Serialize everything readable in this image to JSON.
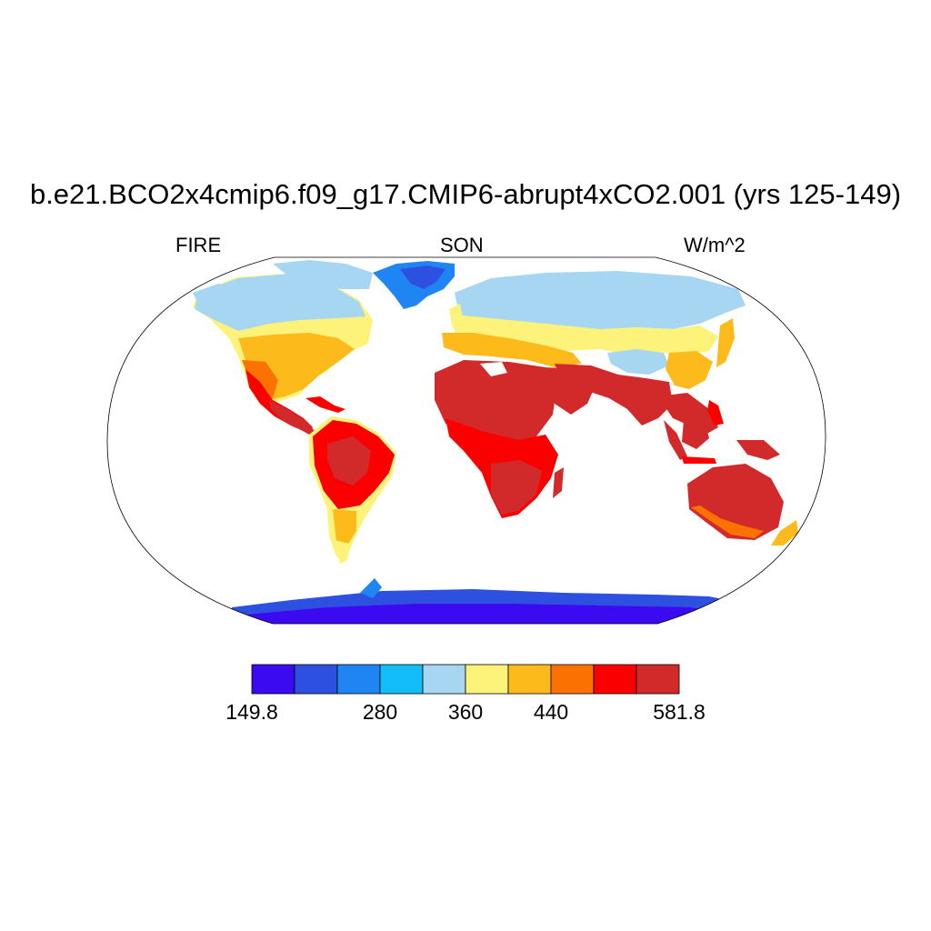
{
  "title": "b.e21.BCO2x4cmip6.f09_g17.CMIP6-abrupt4xCO2.001 (yrs 125-149)",
  "left_string": "FIRE",
  "center_string": "SON",
  "right_string": "W/m^2",
  "colors": {
    "ocean": "#ffffff",
    "coast": "#000000"
  },
  "colorbar": {
    "min_label": "149.8",
    "max_label": "581.8",
    "labels": [
      {
        "text": "149.8",
        "index": 0
      },
      {
        "text": "280",
        "index": 3
      },
      {
        "text": "360",
        "index": 5
      },
      {
        "text": "440",
        "index": 7
      },
      {
        "text": "581.8",
        "index": 10
      }
    ],
    "colors": [
      "#3b0af0",
      "#2d50e0",
      "#1f85f2",
      "#12bdf8",
      "#a6d6f2",
      "#fdf27a",
      "#fcbb1a",
      "#fc7200",
      "#fb0000",
      "#d22a2a"
    ]
  },
  "chart_data": {
    "type": "filled_contour_map",
    "projection": "Robinson",
    "variable": "FIRE",
    "season": "SON",
    "units": "W/m^2",
    "range": [
      149.8,
      581.8
    ],
    "tick_labels": [
      "149.8",
      "280",
      "360",
      "440",
      "581.8"
    ],
    "regions": [
      {
        "name": "Antarctica",
        "level": 0
      },
      {
        "name": "Greenland",
        "level": 2
      },
      {
        "name": "Arctic Canada",
        "level": 4
      },
      {
        "name": "Northern Eurasia",
        "level": 4
      },
      {
        "name": "Tibetan Plateau",
        "level": 4
      },
      {
        "name": "Southern Canada",
        "level": 5
      },
      {
        "name": "Central Eurasia",
        "level": 5
      },
      {
        "name": "Southern South America",
        "level": 5
      },
      {
        "name": "USA",
        "level": 6
      },
      {
        "name": "Mediterranean",
        "level": 6
      },
      {
        "name": "East Asia",
        "level": 6
      },
      {
        "name": "Mexico",
        "level": 7
      },
      {
        "name": "Amazonia",
        "level": 8
      },
      {
        "name": "Central Africa",
        "level": 8
      },
      {
        "name": "Maritime Continent",
        "level": 8
      },
      {
        "name": "Sahara",
        "level": 9
      },
      {
        "name": "Arabia",
        "level": 9
      },
      {
        "name": "India",
        "level": 9
      },
      {
        "name": "Southern Africa",
        "level": 9
      },
      {
        "name": "Australia",
        "level": 9
      }
    ]
  }
}
